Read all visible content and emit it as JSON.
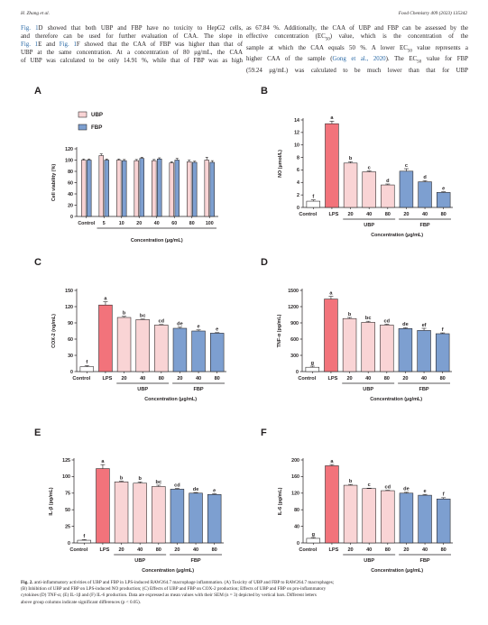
{
  "header": {
    "left": "H. Zhang et al.",
    "right": "Food Chemistry 409 (2023) 135342"
  },
  "body_text": {
    "left": [
      [
        {
          "t": "Fig. 1",
          "link": true
        },
        {
          "t": "D showed that both UBP and FBP have no toxicity to HepG2 cells,"
        }
      ],
      [
        {
          "t": "and therefore can be used for further evaluation of CAA. The slope in"
        }
      ],
      [
        {
          "t": "Fig. 1",
          "link": true
        },
        {
          "t": "E and "
        },
        {
          "t": "Fig. 1",
          "link": true
        },
        {
          "t": "F showed that the CAA of FBP was higher than that of"
        }
      ],
      [
        {
          "t": "UBP at the same concentration. At a concentration of 80 μg/mL, the CAA"
        }
      ],
      [
        {
          "t": "of UBP was calculated to be only 14.91 %, while that of FBP was as high"
        }
      ]
    ],
    "right": [
      [
        {
          "t": "as 67.84 %. Additionally, the CAA of UBP and FBP can be assessed by the"
        }
      ],
      [
        {
          "t": "effective concentration (EC"
        },
        {
          "t": "50",
          "sub": true
        },
        {
          "t": ") value, which is the concentration of the"
        }
      ],
      [
        {
          "t": "sample at which the CAA equals 50 %. A lower EC"
        },
        {
          "t": "50",
          "sub": true
        },
        {
          "t": " value represents a"
        }
      ],
      [
        {
          "t": "higher CAA of the sample ("
        },
        {
          "t": "Gong et al., 2020",
          "link": true
        },
        {
          "t": "). The EC"
        },
        {
          "t": "50",
          "sub": true
        },
        {
          "t": " value for FBP"
        }
      ],
      [
        {
          "t": "(59.24 μg/mL) was calculated to be much lower than that for UBP"
        }
      ]
    ]
  },
  "caption": [
    [
      {
        "t": "Fig. 2.",
        "b": true
      },
      {
        "t": " anti-inflammatory activities of UBP and FBP in LPS-induced RAW264.7 macrophage inflammation. (A) Toxicity of UBP and FBP to RAW264.7 macrophages;"
      }
    ],
    [
      {
        "t": "(B) Inhibition of UBP and FBP on LPS-induced NO production; (C) Effects of UBP and FBP on COX-2 production; Effects of UBP and FBP on pro-inflammatory"
      }
    ],
    [
      {
        "t": "cytokines (D) TNF-α; (E) IL-1β and (F) IL-6 production. Data are expressed as mean values with their SEM (n = 3) depicted by vertical bars. Different letters"
      }
    ],
    [
      {
        "t": "above group columns indicate significant differences (p < 0.05)."
      }
    ]
  ],
  "colors": {
    "control": "#ffffff",
    "lps": "#f2737b",
    "ubp": "#f9d4d5",
    "fbp": "#7d9fd0",
    "stroke": "#231f20",
    "link": "#2a6aa7"
  },
  "chart_data": [
    {
      "panel": "A",
      "type": "bar",
      "ylabel": "Cell viability (%)",
      "xlabel": "Concentration (μg/mL)",
      "yticks": [
        0,
        20,
        40,
        60,
        80,
        100,
        120
      ],
      "ylim": [
        0,
        120
      ],
      "legend": [
        "UBP",
        "FBP"
      ],
      "groups": [
        {
          "label": "Control",
          "values": [
            100,
            100
          ],
          "errors": [
            2,
            2
          ]
        },
        {
          "label": "5",
          "values": [
            108,
            100
          ],
          "errors": [
            3,
            2
          ]
        },
        {
          "label": "10",
          "values": [
            100,
            99
          ],
          "errors": [
            2,
            2
          ]
        },
        {
          "label": "20",
          "values": [
            99,
            103
          ],
          "errors": [
            2,
            2
          ]
        },
        {
          "label": "40",
          "values": [
            99,
            102
          ],
          "errors": [
            2,
            2
          ]
        },
        {
          "label": "60",
          "values": [
            95,
            100
          ],
          "errors": [
            2,
            3
          ]
        },
        {
          "label": "80",
          "values": [
            97,
            96
          ],
          "errors": [
            3,
            2
          ]
        },
        {
          "label": "100",
          "values": [
            100,
            96
          ],
          "errors": [
            5,
            3
          ]
        }
      ]
    },
    {
      "panel": "B",
      "type": "bar",
      "ylabel": "NO (μmol/L)",
      "xlabel": "Concentration (μg/mL)",
      "yticks": [
        0,
        2,
        4,
        6,
        8,
        10,
        12,
        14
      ],
      "ylim": [
        0,
        14
      ],
      "categories": [
        "Control",
        "LPS",
        "20",
        "40",
        "80",
        "20",
        "40",
        "80"
      ],
      "values": [
        1.0,
        13.4,
        7.1,
        5.7,
        3.6,
        5.8,
        4.1,
        2.4
      ],
      "errors": [
        0.2,
        0.4,
        0.2,
        0.15,
        0.15,
        0.4,
        0.2,
        0.1
      ],
      "letters": [
        "f",
        "a",
        "b",
        "c",
        "d",
        "c",
        "d",
        "e"
      ],
      "group_labels": [
        "UBP",
        "FBP"
      ]
    },
    {
      "panel": "C",
      "type": "bar",
      "ylabel": "COX-2 (ng/mL)",
      "xlabel": "Concentration (μg/mL)",
      "yticks": [
        0,
        30,
        60,
        90,
        120,
        150
      ],
      "ylim": [
        0,
        150
      ],
      "categories": [
        "Control",
        "LPS",
        "20",
        "40",
        "80",
        "20",
        "40",
        "80"
      ],
      "values": [
        9,
        123,
        100,
        96,
        86,
        80,
        75,
        71
      ],
      "errors": [
        2,
        6,
        2,
        1,
        1,
        2,
        2,
        1
      ],
      "letters": [
        "f",
        "a",
        "b",
        "bc",
        "cd",
        "de",
        "e",
        "e"
      ],
      "group_labels": [
        "UBP",
        "FBP"
      ]
    },
    {
      "panel": "D",
      "type": "bar",
      "ylabel": "TNF-α (pg/mL)",
      "xlabel": "Concentration (μg/mL)",
      "yticks": [
        0,
        300,
        600,
        900,
        1200,
        1500
      ],
      "ylim": [
        0,
        1500
      ],
      "categories": [
        "Control",
        "LPS",
        "20",
        "40",
        "80",
        "20",
        "40",
        "80"
      ],
      "values": [
        80,
        1340,
        980,
        910,
        860,
        795,
        760,
        700
      ],
      "errors": [
        20,
        50,
        20,
        20,
        15,
        15,
        40,
        15
      ],
      "letters": [
        "g",
        "a",
        "b",
        "bc",
        "cd",
        "de",
        "ef",
        "f"
      ],
      "group_labels": [
        "UBP",
        "FBP"
      ]
    },
    {
      "panel": "E",
      "type": "bar",
      "ylabel": "IL-β (pg/mL)",
      "xlabel": "Concentration (μg/mL)",
      "yticks": [
        0,
        25,
        50,
        75,
        100,
        125
      ],
      "ylim": [
        0,
        125
      ],
      "categories": [
        "Control",
        "LPS",
        "20",
        "40",
        "80",
        "20",
        "40",
        "80"
      ],
      "values": [
        4,
        112,
        92,
        90,
        85,
        81,
        75,
        73
      ],
      "errors": [
        1,
        6,
        1,
        2,
        2,
        1,
        1,
        1
      ],
      "letters": [
        "f",
        "a",
        "b",
        "b",
        "bc",
        "cd",
        "de",
        "e"
      ],
      "group_labels": [
        "UBP",
        "FBP"
      ]
    },
    {
      "panel": "F",
      "type": "bar",
      "ylabel": "IL-6 (pg/mL)",
      "xlabel": "Concentration (μg/mL)",
      "yticks": [
        0,
        40,
        80,
        120,
        160,
        200
      ],
      "ylim": [
        0,
        200
      ],
      "categories": [
        "Control",
        "LPS",
        "20",
        "40",
        "80",
        "20",
        "40",
        "80"
      ],
      "values": [
        11,
        186,
        139,
        131,
        126,
        120,
        115,
        106
      ],
      "errors": [
        2,
        3,
        2,
        1,
        1,
        2,
        2,
        3
      ],
      "letters": [
        "g",
        "a",
        "b",
        "c",
        "cd",
        "de",
        "e",
        "f"
      ],
      "group_labels": [
        "UBP",
        "FBP"
      ]
    }
  ]
}
